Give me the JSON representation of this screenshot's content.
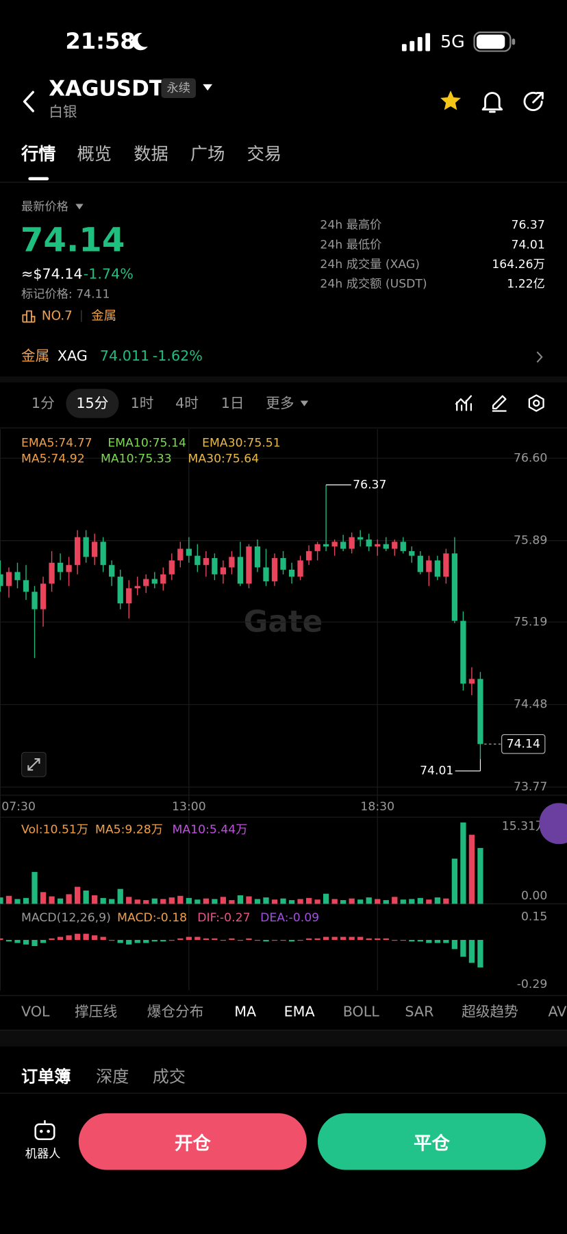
{
  "status_bar": {
    "time": "21:58",
    "network": "5G"
  },
  "header": {
    "symbol": "XAGUSDT",
    "badge": "永续",
    "subtitle": "白银"
  },
  "tabs": [
    "行情",
    "概览",
    "数据",
    "广场",
    "交易"
  ],
  "price": {
    "label": "最新价格",
    "last": "74.14",
    "usd": "≈$74.14",
    "change": "-1.74%",
    "mark": "标记价格: 74.11",
    "rank": "NO.7",
    "sector": "金属"
  },
  "stats": [
    {
      "label": "24h 最高价",
      "value": "76.37"
    },
    {
      "label": "24h 最低价",
      "value": "74.01"
    },
    {
      "label": "24h 成交量 (XAG)",
      "value": "164.26万"
    },
    {
      "label": "24h 成交额 (USDT)",
      "value": "1.22亿"
    }
  ],
  "index": {
    "sector": "金属",
    "name": "XAG",
    "price": "74.011",
    "change": "-1.62%"
  },
  "intervals": [
    "1分",
    "15分",
    "1时",
    "4时",
    "1日",
    "更多"
  ],
  "chart_data": {
    "type": "candlestick",
    "legend": [
      "EMA5:74.77",
      "EMA10:75.14",
      "EMA30:75.51",
      "MA5:74.92",
      "MA10:75.33",
      "MA30:75.64"
    ],
    "watermark": "Gate",
    "categories": [
      "07:30",
      null,
      null,
      null,
      null,
      null,
      null,
      null,
      null,
      null,
      null,
      null,
      null,
      null,
      null,
      null,
      null,
      null,
      null,
      null,
      null,
      null,
      "13:00",
      null,
      null,
      null,
      null,
      null,
      null,
      null,
      null,
      null,
      null,
      null,
      null,
      null,
      null,
      null,
      null,
      null,
      null,
      null,
      null,
      null,
      "18:30",
      null,
      null,
      null,
      null,
      null,
      null,
      null,
      null,
      null,
      null,
      null,
      null
    ],
    "open": [
      75.6,
      75.5,
      75.62,
      75.55,
      75.45,
      75.3,
      75.52,
      75.7,
      75.62,
      75.68,
      75.92,
      75.75,
      75.88,
      75.68,
      75.58,
      75.35,
      75.48,
      75.5,
      75.56,
      75.52,
      75.6,
      75.72,
      75.82,
      75.76,
      75.68,
      75.74,
      75.6,
      75.66,
      75.75,
      75.52,
      75.84,
      75.66,
      75.54,
      75.74,
      75.64,
      75.58,
      75.72,
      75.8,
      75.86,
      75.84,
      75.88,
      75.82,
      75.92,
      75.9,
      75.84,
      75.86,
      75.82,
      75.88,
      75.8,
      75.76,
      75.62,
      75.72,
      75.58,
      75.78,
      75.2,
      74.66,
      74.7
    ],
    "high": [
      75.72,
      75.66,
      75.7,
      75.68,
      75.5,
      75.58,
      75.8,
      75.78,
      75.75,
      75.98,
      75.98,
      75.95,
      75.92,
      75.72,
      75.64,
      75.55,
      75.58,
      75.6,
      75.62,
      75.66,
      75.78,
      75.88,
      75.92,
      75.86,
      75.8,
      75.78,
      75.72,
      75.8,
      75.88,
      75.86,
      75.9,
      75.82,
      75.78,
      75.8,
      75.7,
      75.76,
      75.85,
      75.88,
      76.37,
      75.9,
      75.94,
      75.96,
      75.98,
      75.95,
      75.9,
      75.92,
      75.9,
      75.92,
      75.84,
      75.8,
      75.76,
      75.76,
      75.82,
      75.92,
      75.28,
      74.8,
      74.76
    ],
    "low": [
      75.45,
      75.4,
      75.48,
      75.38,
      74.88,
      75.15,
      75.45,
      75.55,
      75.5,
      75.6,
      75.7,
      75.68,
      75.62,
      75.5,
      75.3,
      75.22,
      75.42,
      75.44,
      75.48,
      75.46,
      75.55,
      75.66,
      75.7,
      75.62,
      75.58,
      75.55,
      75.52,
      75.6,
      75.5,
      75.48,
      75.62,
      75.5,
      75.5,
      75.6,
      75.52,
      75.55,
      75.68,
      75.72,
      75.8,
      75.76,
      75.8,
      75.78,
      75.84,
      75.8,
      75.76,
      75.8,
      75.76,
      75.78,
      75.7,
      75.6,
      75.5,
      75.55,
      75.52,
      75.18,
      74.6,
      74.56,
      74.01
    ],
    "close": [
      75.5,
      75.62,
      75.55,
      75.45,
      75.3,
      75.52,
      75.7,
      75.62,
      75.68,
      75.92,
      75.75,
      75.88,
      75.68,
      75.58,
      75.35,
      75.48,
      75.5,
      75.56,
      75.52,
      75.6,
      75.72,
      75.82,
      75.76,
      75.68,
      75.74,
      75.6,
      75.66,
      75.75,
      75.52,
      75.84,
      75.66,
      75.54,
      75.74,
      75.64,
      75.58,
      75.72,
      75.8,
      75.86,
      75.84,
      75.88,
      75.82,
      75.92,
      75.9,
      75.84,
      75.86,
      75.82,
      75.88,
      75.8,
      75.76,
      75.62,
      75.72,
      75.58,
      75.78,
      75.2,
      74.66,
      74.7,
      74.14
    ],
    "ylim": [
      73.7,
      76.85
    ],
    "yticks": [
      {
        "value": 76.6,
        "label": "76.60"
      },
      75.89,
      75.19,
      74.48,
      73.77
    ],
    "up_color": "#e8455c",
    "down_color": "#1fb97e",
    "volume": {
      "legend": [
        "Vol:10.51万",
        "MA5:9.28万",
        "MA10:5.44万"
      ],
      "values": [
        1.2,
        1.5,
        0.9,
        1.1,
        6.0,
        2.2,
        1.4,
        1.0,
        1.8,
        3.2,
        2.5,
        1.6,
        1.1,
        0.9,
        2.8,
        1.3,
        0.8,
        0.7,
        1.0,
        0.9,
        1.2,
        1.5,
        1.1,
        0.8,
        1.0,
        0.9,
        1.3,
        0.7,
        1.6,
        1.4,
        0.9,
        1.2,
        0.8,
        1.0,
        0.7,
        0.9,
        1.1,
        0.8,
        1.9,
        0.9,
        0.7,
        1.0,
        0.8,
        1.2,
        0.9,
        0.7,
        1.3,
        0.8,
        0.9,
        1.1,
        0.8,
        1.2,
        1.0,
        8.5,
        15.31,
        13.0,
        10.51
      ],
      "ylim": [
        0,
        16
      ],
      "yticks": [
        {
          "value": 15.31,
          "label": "15.31万"
        },
        {
          "value": 0,
          "label": "0.00"
        }
      ]
    },
    "macd": {
      "legend": [
        "MACD(12,26,9)",
        "MACD:-0.18",
        "DIF:-0.27",
        "DEA:-0.09"
      ],
      "values": [
        0.01,
        -0.01,
        -0.02,
        -0.03,
        -0.04,
        -0.02,
        0.01,
        0.02,
        0.03,
        0.04,
        0.04,
        0.03,
        0.02,
        0.0,
        -0.02,
        -0.03,
        -0.02,
        -0.02,
        -0.01,
        -0.01,
        0.0,
        0.01,
        0.02,
        0.02,
        0.01,
        0.01,
        0.0,
        0.01,
        0.0,
        0.01,
        0.0,
        -0.01,
        0.0,
        0.0,
        -0.01,
        0.0,
        0.01,
        0.01,
        0.02,
        0.02,
        0.02,
        0.02,
        0.02,
        0.01,
        0.01,
        0.01,
        0.0,
        0.0,
        -0.01,
        -0.01,
        -0.02,
        -0.02,
        -0.02,
        -0.06,
        -0.11,
        -0.15,
        -0.18
      ],
      "ylim": [
        -0.33,
        0.2
      ],
      "yticks": [
        0.15,
        -0.29
      ]
    }
  },
  "indicator_tabs": [
    "VOL",
    "撑压线",
    "爆仓分布",
    "MA",
    "EMA",
    "BOLL",
    "SAR",
    "超级趋势",
    "AV"
  ],
  "book_tabs": [
    "订单簿",
    "深度",
    "成交"
  ],
  "bottom": {
    "robot": "机器人",
    "open": "开仓",
    "close": "平仓"
  }
}
